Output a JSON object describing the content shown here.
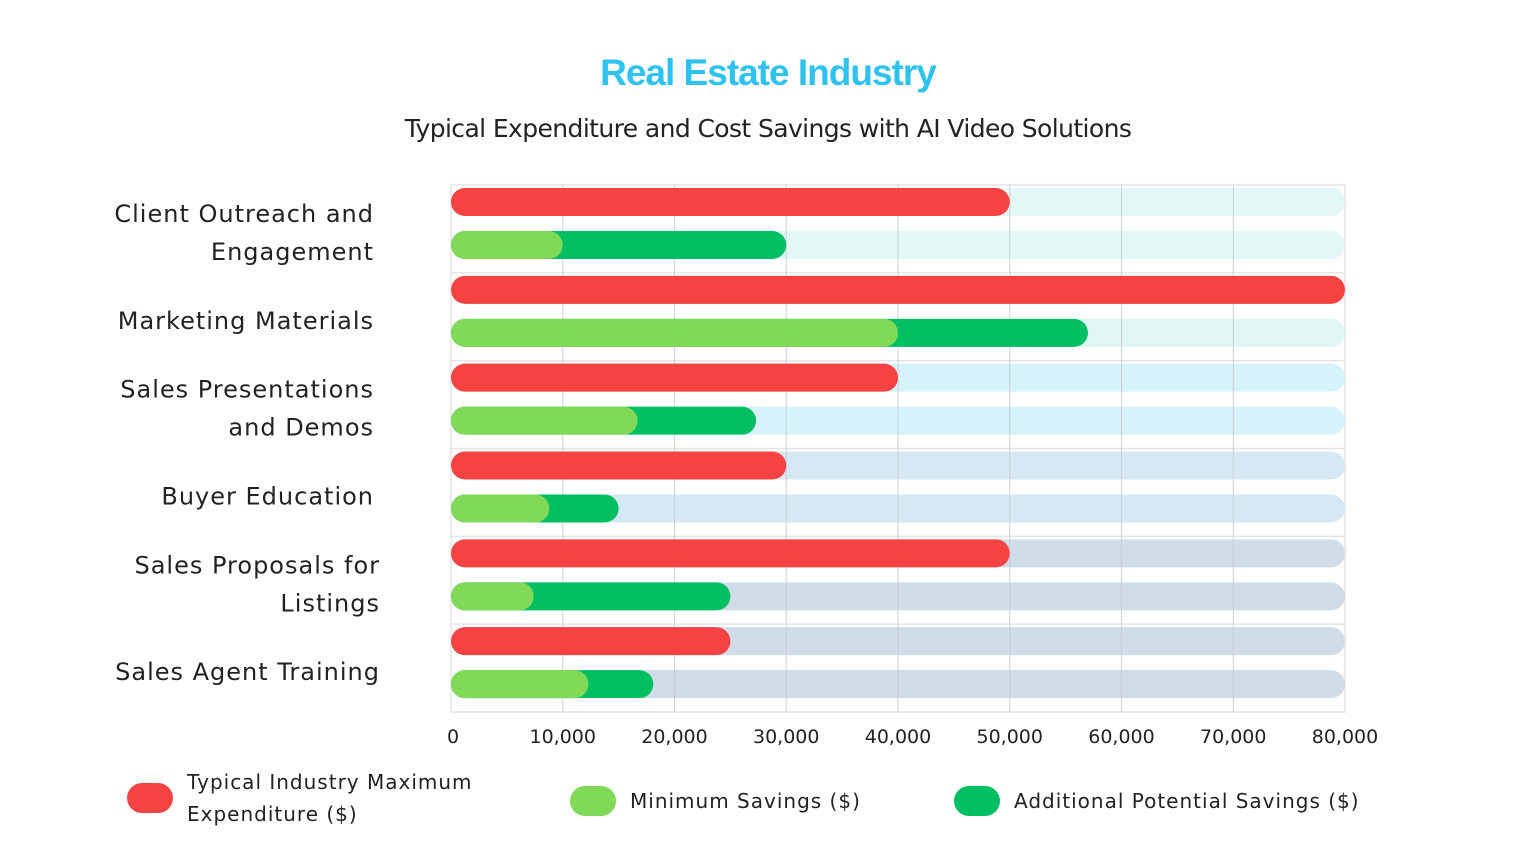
{
  "chart_data": {
    "type": "bar",
    "orientation": "horizontal",
    "title": "Real Estate Industry",
    "subtitle": "Typical Expenditure and Cost Savings with AI Video Solutions",
    "categories": [
      [
        "Client Outreach and",
        "Engagement"
      ],
      [
        "Marketing Materials"
      ],
      [
        "Sales Presentations",
        "and Demos"
      ],
      [
        "Buyer Education"
      ],
      [
        "Sales Proposals for",
        "Listings"
      ],
      [
        "Sales Agent Training"
      ]
    ],
    "series": [
      {
        "name": "Typical Industry Maximum Expenditure ($)",
        "color": "#f54242",
        "values": [
          50000,
          80000,
          40000,
          30000,
          50000,
          25000
        ]
      },
      {
        "name": "Minimum Savings ($)",
        "color": "#80d957",
        "values": [
          10000,
          40000,
          16700,
          8800,
          7400,
          12300
        ]
      },
      {
        "name": "Additional Potential Savings ($)",
        "color": "#00bf63",
        "values": [
          20000,
          17000,
          10600,
          6200,
          17600,
          5800
        ]
      }
    ],
    "stacked_series": [
      "Minimum Savings ($)",
      "Additional Potential Savings ($)"
    ],
    "xlim": [
      0,
      80000
    ],
    "xticks": [
      "0",
      "10,000",
      "20,000",
      "30,000",
      "40,000",
      "50,000",
      "60,000",
      "70,000",
      "80,000"
    ],
    "track_colors": [
      "#e3f7f6",
      "#e0f6f4",
      "#d6f2fa",
      "#d6e8f4",
      "#d0dce8",
      "#d0dce8"
    ],
    "grid": true,
    "legend_position": "bottom",
    "title_color": "#2ec3ef"
  }
}
